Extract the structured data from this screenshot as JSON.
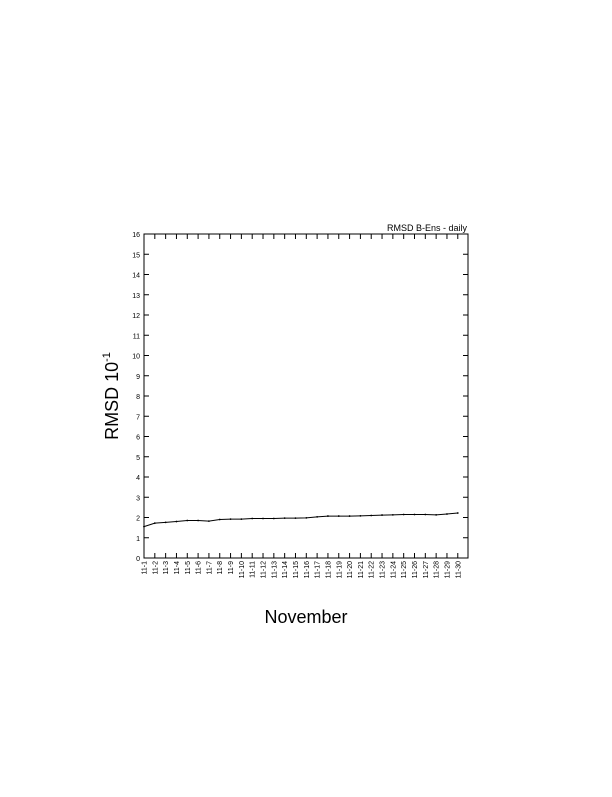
{
  "chart_data": {
    "type": "line",
    "title": "RMSD B-Ens - daily",
    "xlabel": "November",
    "ylabel": "RMSD 10",
    "ylabel_exponent": "-1",
    "ylim": [
      0,
      16
    ],
    "yticks": [
      0,
      1,
      2,
      3,
      4,
      5,
      6,
      7,
      8,
      9,
      10,
      11,
      12,
      13,
      14,
      15,
      16
    ],
    "categories": [
      "11-1",
      "11-2",
      "11-3",
      "11-4",
      "11-5",
      "11-6",
      "11-7",
      "11-8",
      "11-9",
      "11-10",
      "11-11",
      "11-12",
      "11-13",
      "11-14",
      "11-15",
      "11-16",
      "11-17",
      "11-18",
      "11-19",
      "11-20",
      "11-21",
      "11-22",
      "11-23",
      "11-24",
      "11-25",
      "11-26",
      "11-27",
      "11-28",
      "11-29",
      "11-30"
    ],
    "values": [
      1.55,
      1.72,
      1.76,
      1.8,
      1.85,
      1.85,
      1.82,
      1.9,
      1.92,
      1.92,
      1.95,
      1.95,
      1.95,
      1.97,
      1.97,
      1.98,
      2.03,
      2.07,
      2.07,
      2.07,
      2.08,
      2.1,
      2.12,
      2.13,
      2.15,
      2.15,
      2.15,
      2.13,
      2.17,
      2.22
    ],
    "grid": false,
    "line_color": "#000000"
  }
}
